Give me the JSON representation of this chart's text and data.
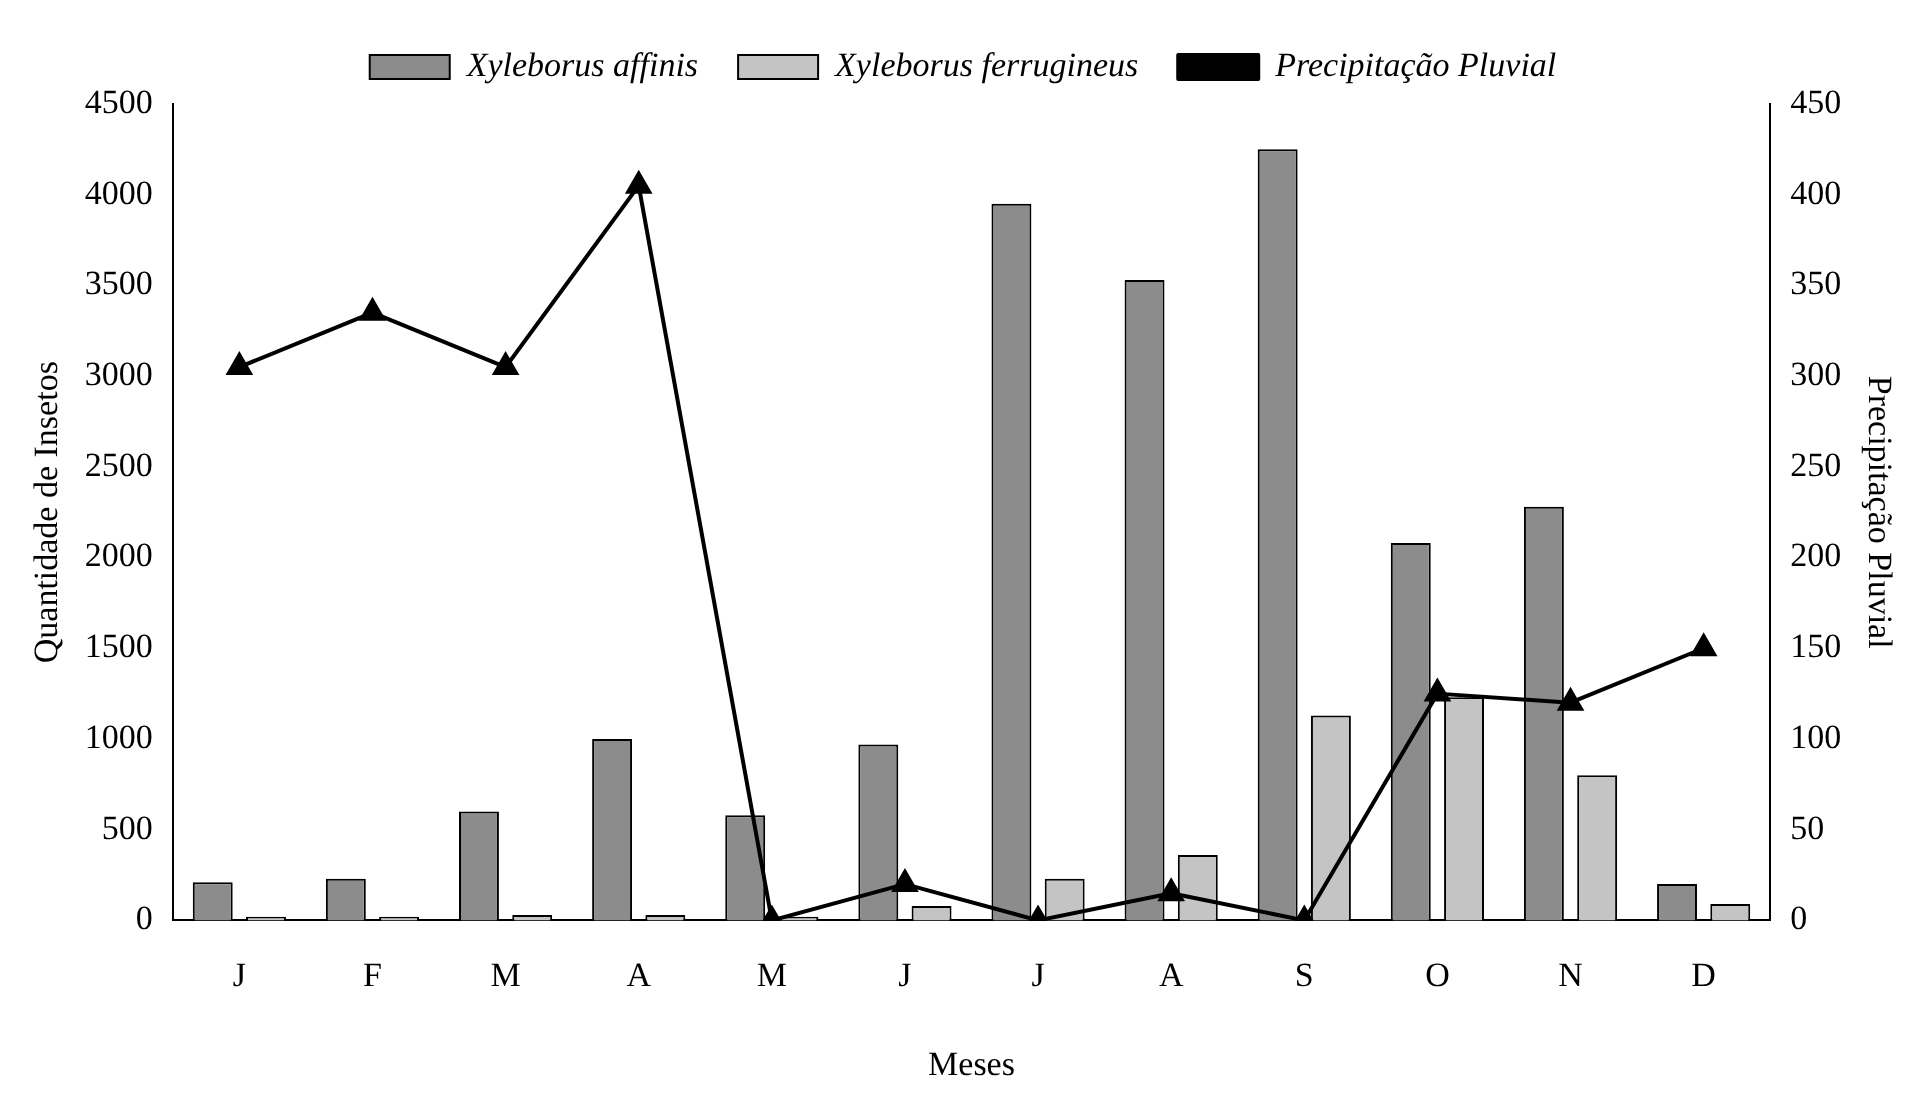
{
  "chart_data": {
    "type": "bar",
    "xlabel": "Meses",
    "ylabel": "Quantidade de Insetos",
    "y2label": "Precipitação Pluvial",
    "categories": [
      "J",
      "F",
      "M",
      "A",
      "M",
      "J",
      "J",
      "A",
      "S",
      "O",
      "N",
      "D"
    ],
    "series": [
      {
        "name": "Xyleborus affinis",
        "color": "#8c8c8c",
        "values": [
          210,
          230,
          600,
          1000,
          580,
          970,
          3950,
          3530,
          4250,
          2080,
          2280,
          200
        ]
      },
      {
        "name": "Xyleborus ferrugineus",
        "color": "#c4c4c4",
        "values": [
          20,
          20,
          30,
          30,
          20,
          80,
          230,
          360,
          1130,
          1230,
          800,
          90
        ]
      },
      {
        "name": "Precipitação Pluvial",
        "type": "line",
        "axis": "y2",
        "color": "#000000",
        "marker": "triangle",
        "values": [
          305,
          335,
          305,
          405,
          0,
          20,
          0,
          15,
          0,
          125,
          120,
          150
        ]
      }
    ],
    "ylim": [
      0,
      4500
    ],
    "yticks": [
      0,
      500,
      1000,
      1500,
      2000,
      2500,
      3000,
      3500,
      4000,
      4500
    ],
    "y2lim": [
      0,
      450
    ],
    "y2ticks": [
      0,
      50,
      100,
      150,
      200,
      250,
      300,
      350,
      400,
      450
    ],
    "grid": false,
    "legend": "top"
  }
}
